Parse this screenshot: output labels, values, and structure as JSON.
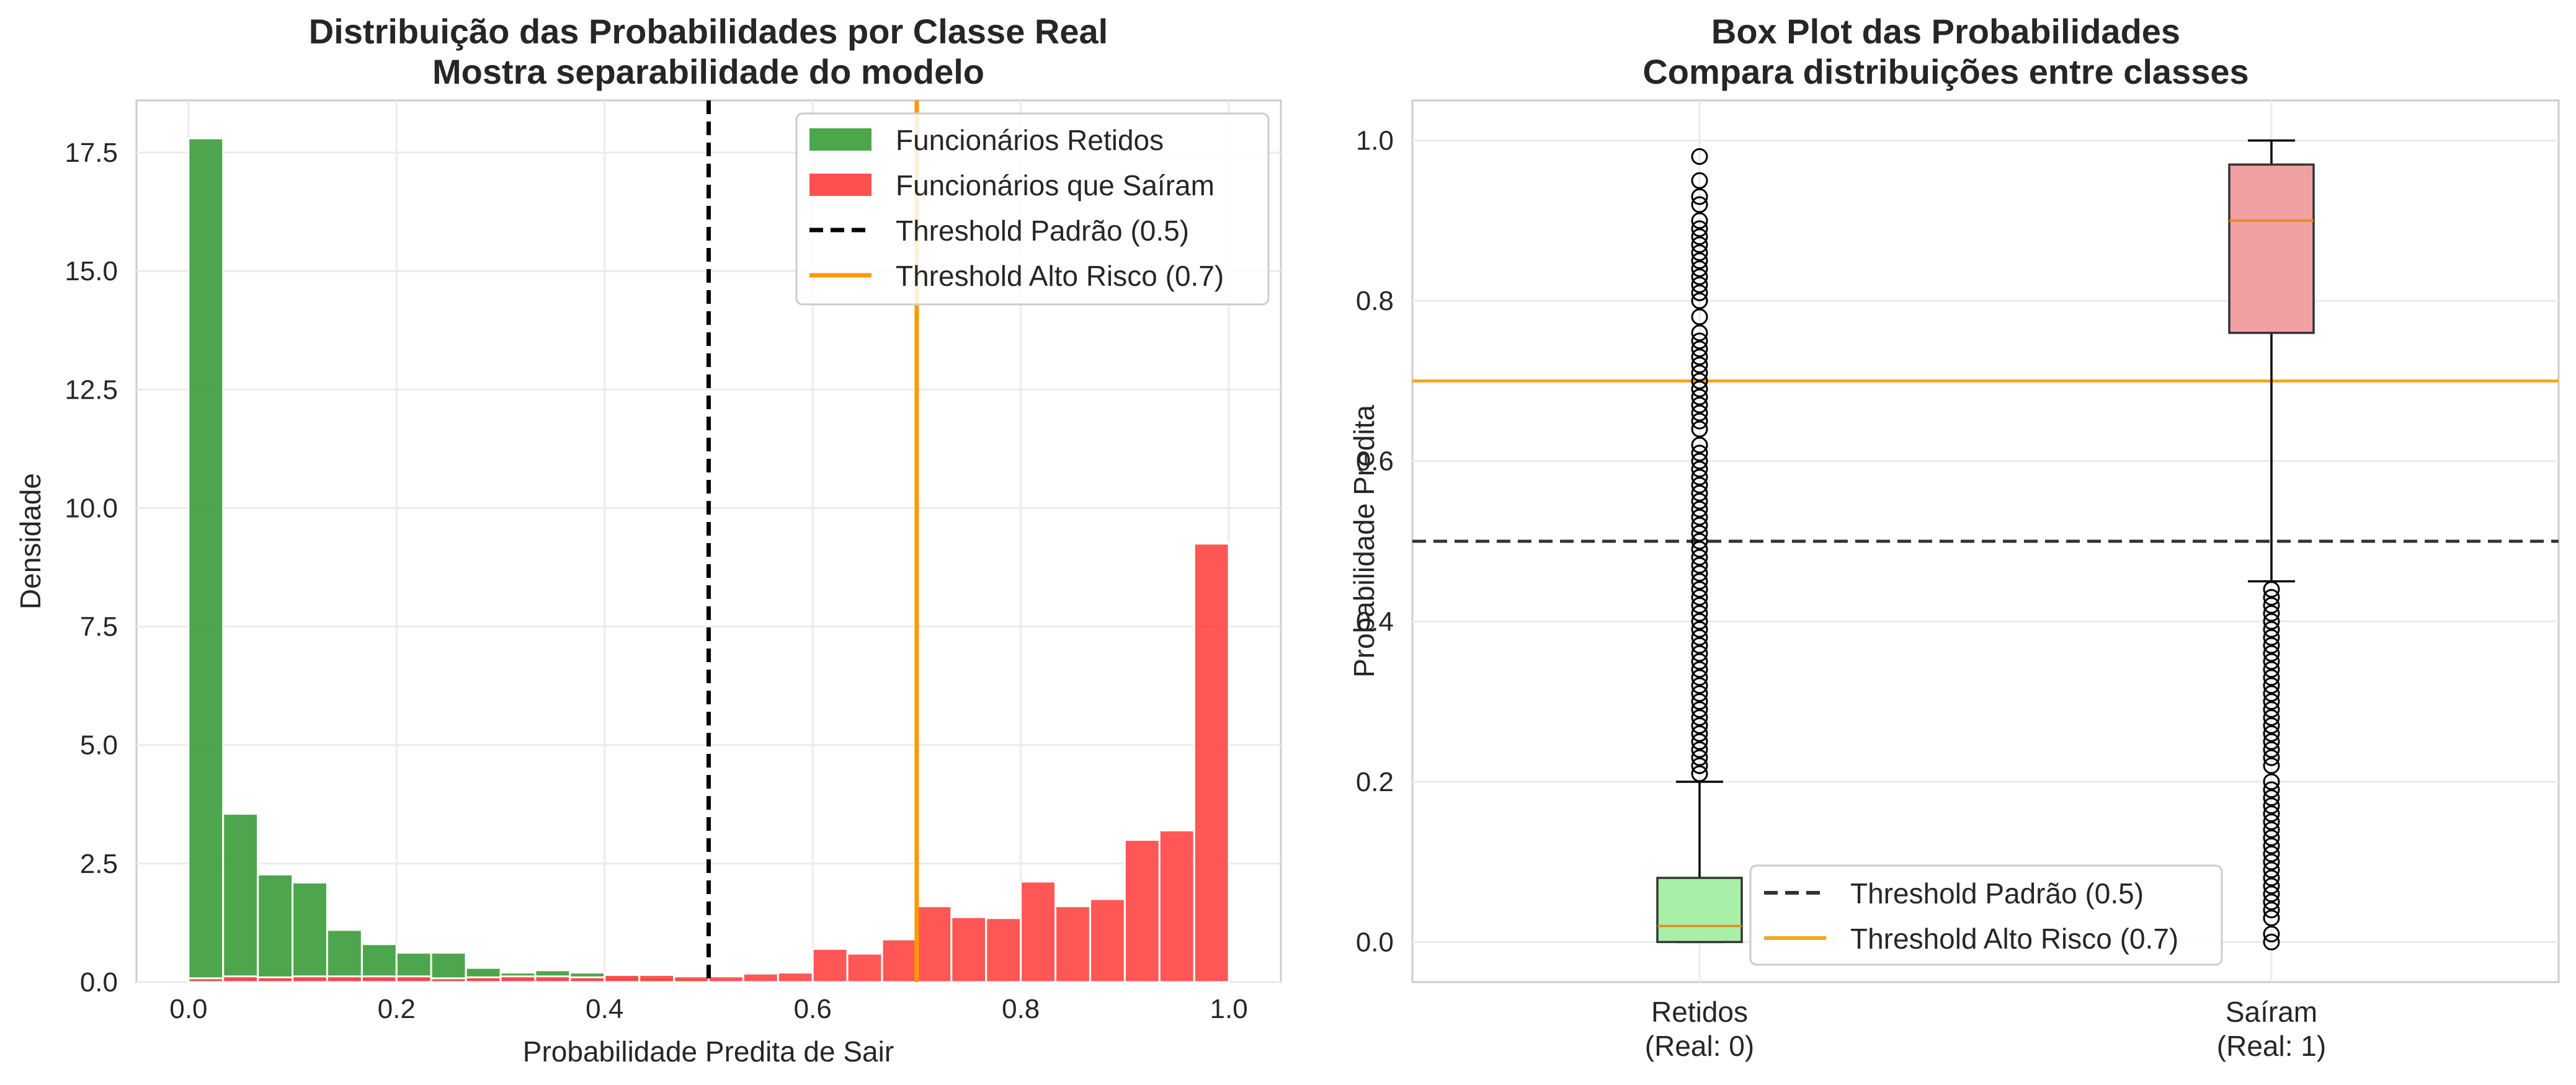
{
  "chart_data": [
    {
      "type": "histogram",
      "title": "Distribuição das Probabilidades por Classe Real",
      "subtitle": "Mostra separabilidade do modelo",
      "xlabel": "Probabilidade Predita de Sair",
      "ylabel": "Densidade",
      "xlim": [
        -0.05,
        1.05
      ],
      "ylim": [
        0,
        18.6
      ],
      "x_ticks": [
        "0.0",
        "0.2",
        "0.4",
        "0.6",
        "0.8",
        "1.0"
      ],
      "y_ticks": [
        "0.0",
        "2.5",
        "5.0",
        "7.5",
        "10.0",
        "12.5",
        "15.0",
        "17.5"
      ],
      "grid": true,
      "legend_position": "top-right",
      "bin_width": 0.0333,
      "series": [
        {
          "name": "Funcionários Retidos",
          "color": "#3a9b3a",
          "bins_start": [
            0.0,
            0.0333,
            0.0667,
            0.1,
            0.1333,
            0.1667,
            0.2,
            0.2333,
            0.2667,
            0.3,
            0.3333,
            0.3667,
            0.4,
            0.4333,
            0.4667,
            0.5,
            0.5333,
            0.5667
          ],
          "values": [
            17.8,
            3.55,
            2.27,
            2.1,
            1.1,
            0.8,
            0.62,
            0.62,
            0.3,
            0.2,
            0.25,
            0.2,
            0.12,
            0.1,
            0.08,
            0.05,
            0.04,
            0.02
          ]
        },
        {
          "name": "Funcionários que Saíram",
          "color": "#ff4444",
          "bins_start": [
            0.0,
            0.0333,
            0.0667,
            0.1,
            0.1333,
            0.1667,
            0.2,
            0.2333,
            0.2667,
            0.3,
            0.3333,
            0.3667,
            0.4,
            0.4333,
            0.4667,
            0.5,
            0.5333,
            0.5667,
            0.6,
            0.6333,
            0.6667,
            0.7,
            0.7333,
            0.7667,
            0.8,
            0.8333,
            0.8667,
            0.9,
            0.9333,
            0.9667
          ],
          "values": [
            0.08,
            0.12,
            0.1,
            0.12,
            0.12,
            0.12,
            0.12,
            0.08,
            0.1,
            0.12,
            0.12,
            0.1,
            0.15,
            0.15,
            0.12,
            0.12,
            0.18,
            0.2,
            0.7,
            0.6,
            0.9,
            1.6,
            1.37,
            1.35,
            2.12,
            1.6,
            1.75,
            3.0,
            3.2,
            9.25
          ]
        }
      ],
      "reference_lines": [
        {
          "name": "Threshold Padrão (0.5)",
          "x": 0.5,
          "style": "dashed",
          "color": "#000000"
        },
        {
          "name": "Threshold Alto Risco (0.7)",
          "x": 0.7,
          "style": "solid",
          "color": "#ff9900"
        }
      ]
    },
    {
      "type": "box",
      "title": "Box Plot das Probabilidades",
      "subtitle": "Compara distribuições entre classes",
      "xlabel": "",
      "ylabel": "Probabilidade Predita",
      "ylim": [
        -0.05,
        1.05
      ],
      "y_ticks": [
        "0.0",
        "0.2",
        "0.4",
        "0.6",
        "0.8",
        "1.0"
      ],
      "grid": true,
      "legend_position": "bottom-center",
      "categories": [
        "Retidos\n(Real: 0)",
        "Saíram\n(Real: 1)"
      ],
      "boxes": [
        {
          "category_line1": "Retidos",
          "category_line2": "(Real: 0)",
          "color": "#a8f0a8",
          "whisker_low": 0.0,
          "q1": 0.0,
          "median": 0.02,
          "q3": 0.08,
          "whisker_high": 0.2,
          "outliers": [
            0.21,
            0.22,
            0.23,
            0.24,
            0.25,
            0.26,
            0.27,
            0.28,
            0.29,
            0.3,
            0.31,
            0.32,
            0.33,
            0.34,
            0.35,
            0.36,
            0.37,
            0.38,
            0.39,
            0.4,
            0.41,
            0.42,
            0.43,
            0.44,
            0.45,
            0.46,
            0.47,
            0.48,
            0.49,
            0.5,
            0.51,
            0.52,
            0.53,
            0.54,
            0.55,
            0.56,
            0.57,
            0.58,
            0.59,
            0.6,
            0.61,
            0.62,
            0.64,
            0.65,
            0.66,
            0.67,
            0.68,
            0.69,
            0.7,
            0.71,
            0.72,
            0.73,
            0.74,
            0.75,
            0.76,
            0.78,
            0.8,
            0.81,
            0.82,
            0.83,
            0.84,
            0.85,
            0.86,
            0.87,
            0.88,
            0.89,
            0.9,
            0.92,
            0.93,
            0.95,
            0.98
          ]
        },
        {
          "category_line1": "Saíram",
          "category_line2": "(Real: 1)",
          "color": "#f0a0a0",
          "whisker_low": 0.45,
          "q1": 0.76,
          "median": 0.9,
          "q3": 0.97,
          "whisker_high": 1.0,
          "outliers": [
            0.0,
            0.01,
            0.03,
            0.04,
            0.05,
            0.06,
            0.07,
            0.08,
            0.09,
            0.1,
            0.11,
            0.12,
            0.13,
            0.14,
            0.15,
            0.16,
            0.17,
            0.18,
            0.19,
            0.2,
            0.22,
            0.23,
            0.24,
            0.25,
            0.26,
            0.27,
            0.28,
            0.29,
            0.3,
            0.31,
            0.32,
            0.33,
            0.34,
            0.35,
            0.36,
            0.37,
            0.38,
            0.39,
            0.4,
            0.41,
            0.42,
            0.43,
            0.44
          ]
        }
      ],
      "reference_lines": [
        {
          "name": "Threshold Padrão (0.5)",
          "y": 0.5,
          "style": "dashed",
          "color": "#333333"
        },
        {
          "name": "Threshold Alto Risco (0.7)",
          "y": 0.7,
          "style": "solid",
          "color": "#f5a623"
        }
      ]
    }
  ]
}
